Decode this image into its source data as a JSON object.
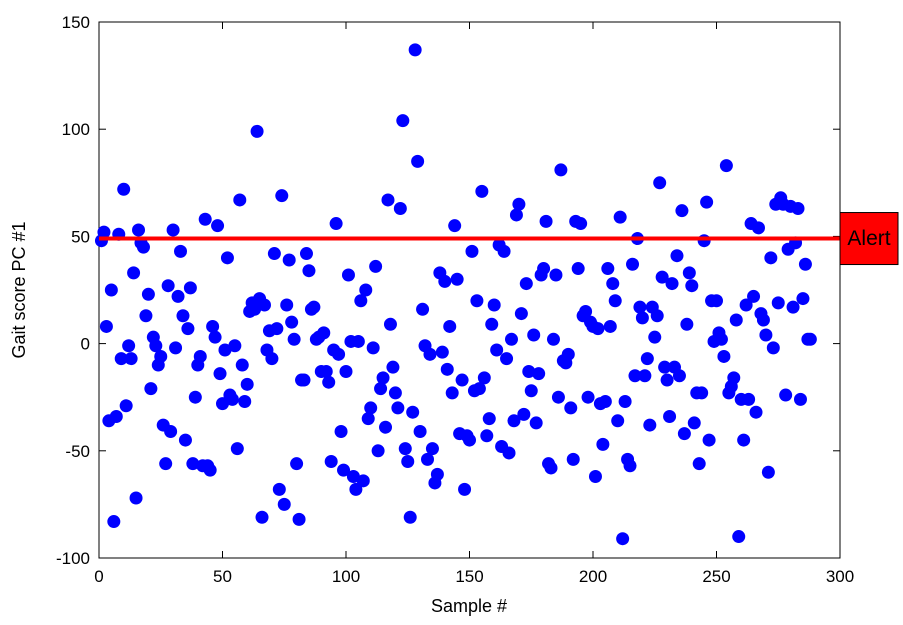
{
  "chart_data": {
    "type": "scatter",
    "xlabel": "Sample #",
    "ylabel": "Gait score PC #1",
    "xlim": [
      0,
      300
    ],
    "ylim": [
      -100,
      150
    ],
    "xticks": [
      0,
      50,
      100,
      150,
      200,
      250,
      300
    ],
    "yticks": [
      -100,
      -50,
      0,
      50,
      100,
      150
    ],
    "grid": false,
    "marker_color": "#0000ff",
    "threshold": {
      "label": "Alert",
      "value": 49,
      "line_color": "#ff0000",
      "box_color": "#ff0000"
    },
    "points": [
      [
        1,
        48
      ],
      [
        2,
        52
      ],
      [
        3,
        8
      ],
      [
        4,
        -36
      ],
      [
        5,
        25
      ],
      [
        6,
        -83
      ],
      [
        7,
        -34
      ],
      [
        8,
        51
      ],
      [
        9,
        -7
      ],
      [
        10,
        72
      ],
      [
        11,
        -29
      ],
      [
        12,
        -1
      ],
      [
        13,
        -7
      ],
      [
        14,
        33
      ],
      [
        15,
        -72
      ],
      [
        16,
        53
      ],
      [
        17,
        47
      ],
      [
        18,
        45
      ],
      [
        19,
        13
      ],
      [
        20,
        23
      ],
      [
        21,
        -21
      ],
      [
        22,
        3
      ],
      [
        23,
        -1
      ],
      [
        24,
        -10
      ],
      [
        25,
        -6
      ],
      [
        26,
        -38
      ],
      [
        27,
        -56
      ],
      [
        28,
        27
      ],
      [
        29,
        -41
      ],
      [
        30,
        53
      ],
      [
        31,
        -2
      ],
      [
        32,
        22
      ],
      [
        33,
        43
      ],
      [
        34,
        13
      ],
      [
        35,
        -45
      ],
      [
        36,
        7
      ],
      [
        37,
        26
      ],
      [
        38,
        -56
      ],
      [
        39,
        -25
      ],
      [
        40,
        -10
      ],
      [
        41,
        -6
      ],
      [
        42,
        -57
      ],
      [
        43,
        58
      ],
      [
        44,
        -57
      ],
      [
        45,
        -59
      ],
      [
        46,
        8
      ],
      [
        47,
        3
      ],
      [
        48,
        55
      ],
      [
        49,
        -14
      ],
      [
        50,
        -28
      ],
      [
        51,
        -3
      ],
      [
        52,
        40
      ],
      [
        53,
        -24
      ],
      [
        54,
        -26
      ],
      [
        55,
        -1
      ],
      [
        56,
        -49
      ],
      [
        57,
        67
      ],
      [
        58,
        -10
      ],
      [
        59,
        -27
      ],
      [
        60,
        -19
      ],
      [
        61,
        15
      ],
      [
        62,
        19
      ],
      [
        63,
        16
      ],
      [
        64,
        99
      ],
      [
        65,
        21
      ],
      [
        66,
        -81
      ],
      [
        67,
        18
      ],
      [
        68,
        -3
      ],
      [
        69,
        6
      ],
      [
        70,
        -7
      ],
      [
        71,
        42
      ],
      [
        72,
        7
      ],
      [
        73,
        -68
      ],
      [
        74,
        69
      ],
      [
        75,
        -75
      ],
      [
        76,
        18
      ],
      [
        77,
        39
      ],
      [
        78,
        10
      ],
      [
        79,
        2
      ],
      [
        80,
        -56
      ],
      [
        81,
        -82
      ],
      [
        82,
        -17
      ],
      [
        83,
        -17
      ],
      [
        84,
        42
      ],
      [
        85,
        34
      ],
      [
        86,
        16
      ],
      [
        87,
        17
      ],
      [
        88,
        2
      ],
      [
        89,
        3
      ],
      [
        90,
        -13
      ],
      [
        91,
        5
      ],
      [
        92,
        -13
      ],
      [
        93,
        -18
      ],
      [
        94,
        -55
      ],
      [
        95,
        -3
      ],
      [
        96,
        56
      ],
      [
        97,
        -5
      ],
      [
        98,
        -41
      ],
      [
        99,
        -59
      ],
      [
        100,
        -13
      ],
      [
        101,
        32
      ],
      [
        102,
        1
      ],
      [
        103,
        -62
      ],
      [
        104,
        -68
      ],
      [
        105,
        1
      ],
      [
        106,
        20
      ],
      [
        107,
        -64
      ],
      [
        108,
        25
      ],
      [
        109,
        -35
      ],
      [
        110,
        -30
      ],
      [
        111,
        -2
      ],
      [
        112,
        36
      ],
      [
        113,
        -50
      ],
      [
        114,
        -21
      ],
      [
        115,
        -16
      ],
      [
        116,
        -39
      ],
      [
        117,
        67
      ],
      [
        118,
        9
      ],
      [
        119,
        -11
      ],
      [
        120,
        -23
      ],
      [
        121,
        -30
      ],
      [
        122,
        63
      ],
      [
        123,
        104
      ],
      [
        124,
        -49
      ],
      [
        125,
        -55
      ],
      [
        126,
        -81
      ],
      [
        127,
        -32
      ],
      [
        128,
        137
      ],
      [
        129,
        85
      ],
      [
        130,
        -41
      ],
      [
        131,
        16
      ],
      [
        132,
        -1
      ],
      [
        133,
        -54
      ],
      [
        134,
        -5
      ],
      [
        135,
        -49
      ],
      [
        136,
        -65
      ],
      [
        137,
        -61
      ],
      [
        138,
        33
      ],
      [
        139,
        -4
      ],
      [
        140,
        29
      ],
      [
        141,
        -12
      ],
      [
        142,
        8
      ],
      [
        143,
        -23
      ],
      [
        144,
        55
      ],
      [
        145,
        30
      ],
      [
        146,
        -42
      ],
      [
        147,
        -17
      ],
      [
        148,
        -68
      ],
      [
        149,
        -43
      ],
      [
        150,
        -45
      ],
      [
        151,
        43
      ],
      [
        152,
        -22
      ],
      [
        153,
        20
      ],
      [
        154,
        -21
      ],
      [
        155,
        71
      ],
      [
        156,
        -16
      ],
      [
        157,
        -43
      ],
      [
        158,
        -35
      ],
      [
        159,
        9
      ],
      [
        160,
        18
      ],
      [
        161,
        -3
      ],
      [
        162,
        46
      ],
      [
        163,
        -48
      ],
      [
        164,
        43
      ],
      [
        165,
        -7
      ],
      [
        166,
        -51
      ],
      [
        167,
        2
      ],
      [
        168,
        -36
      ],
      [
        169,
        60
      ],
      [
        170,
        65
      ],
      [
        171,
        14
      ],
      [
        172,
        -33
      ],
      [
        173,
        28
      ],
      [
        174,
        -13
      ],
      [
        175,
        -22
      ],
      [
        176,
        4
      ],
      [
        177,
        -37
      ],
      [
        178,
        -14
      ],
      [
        179,
        32
      ],
      [
        180,
        35
      ],
      [
        181,
        57
      ],
      [
        182,
        -56
      ],
      [
        183,
        -58
      ],
      [
        184,
        2
      ],
      [
        185,
        32
      ],
      [
        186,
        -25
      ],
      [
        187,
        81
      ],
      [
        188,
        -8
      ],
      [
        189,
        -9
      ],
      [
        190,
        -5
      ],
      [
        191,
        -30
      ],
      [
        192,
        -54
      ],
      [
        193,
        57
      ],
      [
        194,
        35
      ],
      [
        195,
        56
      ],
      [
        196,
        13
      ],
      [
        197,
        15
      ],
      [
        198,
        -25
      ],
      [
        199,
        10
      ],
      [
        200,
        8
      ],
      [
        201,
        -62
      ],
      [
        202,
        7
      ],
      [
        203,
        -28
      ],
      [
        204,
        -47
      ],
      [
        205,
        -27
      ],
      [
        206,
        35
      ],
      [
        207,
        8
      ],
      [
        208,
        28
      ],
      [
        209,
        20
      ],
      [
        210,
        -36
      ],
      [
        211,
        59
      ],
      [
        212,
        -91
      ],
      [
        213,
        -27
      ],
      [
        214,
        -54
      ],
      [
        215,
        -57
      ],
      [
        216,
        37
      ],
      [
        217,
        -15
      ],
      [
        218,
        49
      ],
      [
        219,
        17
      ],
      [
        220,
        12
      ],
      [
        221,
        -15
      ],
      [
        222,
        -7
      ],
      [
        223,
        -38
      ],
      [
        224,
        17
      ],
      [
        225,
        3
      ],
      [
        226,
        13
      ],
      [
        227,
        75
      ],
      [
        228,
        31
      ],
      [
        229,
        -11
      ],
      [
        230,
        -17
      ],
      [
        231,
        -34
      ],
      [
        232,
        28
      ],
      [
        233,
        -11
      ],
      [
        234,
        41
      ],
      [
        235,
        -15
      ],
      [
        236,
        62
      ],
      [
        237,
        -42
      ],
      [
        238,
        9
      ],
      [
        239,
        33
      ],
      [
        240,
        27
      ],
      [
        241,
        -37
      ],
      [
        242,
        -23
      ],
      [
        243,
        -56
      ],
      [
        244,
        -23
      ],
      [
        245,
        48
      ],
      [
        246,
        66
      ],
      [
        247,
        -45
      ],
      [
        248,
        20
      ],
      [
        249,
        1
      ],
      [
        250,
        20
      ],
      [
        251,
        5
      ],
      [
        252,
        2
      ],
      [
        253,
        -6
      ],
      [
        254,
        83
      ],
      [
        255,
        -23
      ],
      [
        256,
        -20
      ],
      [
        257,
        -16
      ],
      [
        258,
        11
      ],
      [
        259,
        -90
      ],
      [
        260,
        -26
      ],
      [
        261,
        -45
      ],
      [
        262,
        18
      ],
      [
        263,
        -26
      ],
      [
        264,
        56
      ],
      [
        265,
        22
      ],
      [
        266,
        -32
      ],
      [
        267,
        54
      ],
      [
        268,
        14
      ],
      [
        269,
        11
      ],
      [
        270,
        4
      ],
      [
        271,
        -60
      ],
      [
        272,
        40
      ],
      [
        273,
        -2
      ],
      [
        274,
        65
      ],
      [
        275,
        19
      ],
      [
        276,
        68
      ],
      [
        277,
        65
      ],
      [
        278,
        -24
      ],
      [
        279,
        44
      ],
      [
        280,
        64
      ],
      [
        281,
        17
      ],
      [
        282,
        47
      ],
      [
        283,
        63
      ],
      [
        284,
        -26
      ],
      [
        285,
        21
      ],
      [
        286,
        37
      ],
      [
        287,
        2
      ],
      [
        288,
        2
      ]
    ]
  }
}
